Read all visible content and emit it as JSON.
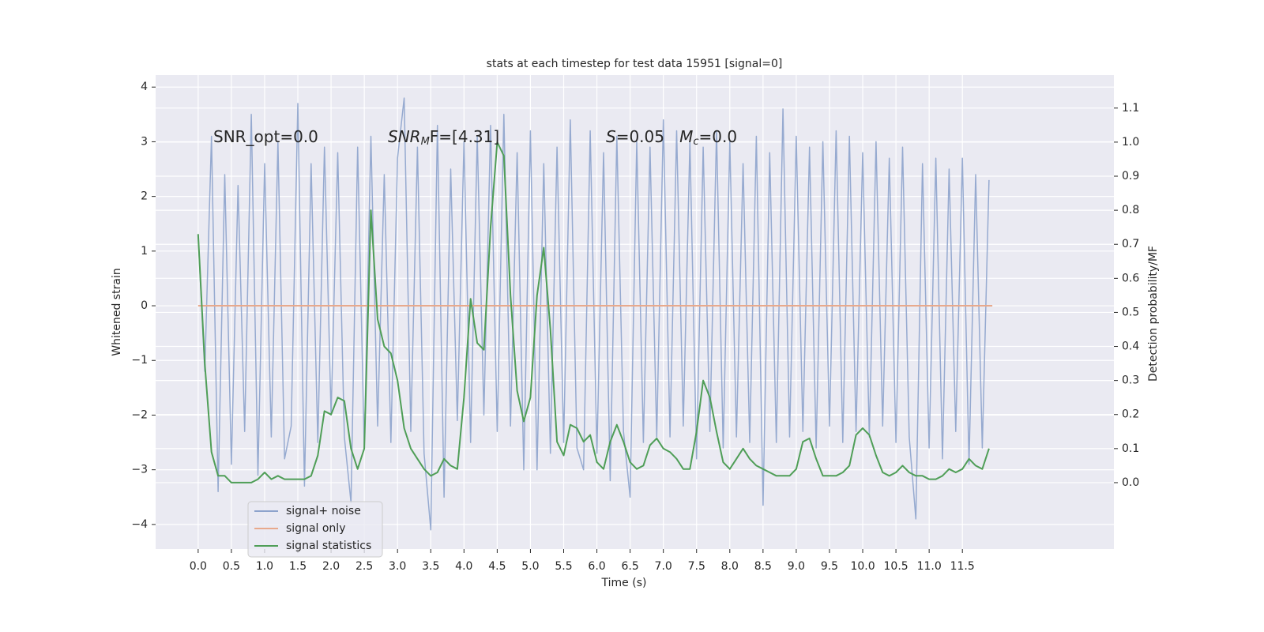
{
  "chart_data": {
    "type": "line",
    "title": "stats at each timestep for test data 15951 [signal=0]",
    "xlabel": "Time (s)",
    "ylabel": "Whitened strain",
    "y2label": "Detection probability/MF",
    "annotations": [
      [
        "SNR_opt=0.0"
      ],
      [
        "SNR",
        "M",
        "F=[4.31]"
      ],
      [
        "S",
        "=0.05   ",
        "M",
        "c",
        "=0.0"
      ]
    ],
    "grid": true,
    "legend": "lower left",
    "xlim": [
      -0.64,
      13.78
    ],
    "ylim": [
      -4.45,
      4.22
    ],
    "y2lim": [
      -0.195,
      1.197
    ],
    "xticks": [
      {
        "value": 0,
        "label": "0.0"
      },
      {
        "value": 0.5,
        "label": "0.5"
      },
      {
        "value": 1,
        "label": "1.0"
      },
      {
        "value": 1.5,
        "label": "1.5"
      },
      {
        "value": 2,
        "label": "2.0"
      },
      {
        "value": 2.5,
        "label": "2.5"
      },
      {
        "value": 3,
        "label": "3.0"
      },
      {
        "value": 3.5,
        "label": "3.5"
      },
      {
        "value": 4,
        "label": "4.0"
      },
      {
        "value": 4.5,
        "label": "4.5"
      },
      {
        "value": 5,
        "label": "5.0"
      },
      {
        "value": 5.5,
        "label": "5.5"
      },
      {
        "value": 6,
        "label": "6.0"
      },
      {
        "value": 6.5,
        "label": "6.5"
      },
      {
        "value": 7,
        "label": "7.0"
      },
      {
        "value": 7.5,
        "label": "7.5"
      },
      {
        "value": 8,
        "label": "8.0"
      },
      {
        "value": 8.5,
        "label": "8.5"
      },
      {
        "value": 9,
        "label": "9.0"
      },
      {
        "value": 9.5,
        "label": "9.5"
      },
      {
        "value": 10,
        "label": "10.0"
      },
      {
        "value": 10.5,
        "label": "10.5"
      },
      {
        "value": 11,
        "label": "11.0"
      },
      {
        "value": 11.5,
        "label": "11.5"
      }
    ],
    "yticks": [
      {
        "value": -4,
        "label": "−4"
      },
      {
        "value": -3,
        "label": "−3"
      },
      {
        "value": -2,
        "label": "−2"
      },
      {
        "value": -1,
        "label": "−1"
      },
      0,
      1,
      2,
      3,
      4
    ],
    "y2ticks": [
      {
        "value": 0,
        "label": "0.0"
      },
      {
        "value": 0.1,
        "label": "0.1"
      },
      {
        "value": 0.2,
        "label": "0.2"
      },
      {
        "value": 0.3,
        "label": "0.3"
      },
      {
        "value": 0.4,
        "label": "0.4"
      },
      {
        "value": 0.5,
        "label": "0.5"
      },
      {
        "value": 0.6,
        "label": "0.6"
      },
      {
        "value": 0.7,
        "label": "0.7"
      },
      {
        "value": 0.8,
        "label": "0.8"
      },
      {
        "value": 0.9,
        "label": "0.9"
      },
      {
        "value": 1,
        "label": "1.0"
      },
      {
        "value": 1.1,
        "label": "1.1"
      }
    ],
    "series": [
      {
        "name": "signal+ noise",
        "color": "#8da3cc",
        "x": [
          0,
          0.1,
          0.2,
          0.3,
          0.4,
          0.5,
          0.6,
          0.7,
          0.8,
          0.9,
          1,
          1.1,
          1.2,
          1.3,
          1.4,
          1.5,
          1.6,
          1.7,
          1.8,
          1.9,
          2,
          2.1,
          2.2,
          2.3,
          2.4,
          2.5,
          2.6,
          2.7,
          2.8,
          2.9,
          3,
          3.1,
          3.2,
          3.3,
          3.4,
          3.5,
          3.6,
          3.7,
          3.8,
          3.9,
          4,
          4.1,
          4.2,
          4.3,
          4.4,
          4.5,
          4.6,
          4.7,
          4.8,
          4.9,
          5,
          5.1,
          5.2,
          5.3,
          5.4,
          5.5,
          5.6,
          5.7,
          5.8,
          5.9,
          6,
          6.1,
          6.2,
          6.3,
          6.4,
          6.5,
          6.6,
          6.7,
          6.8,
          6.9,
          7,
          7.1,
          7.2,
          7.3,
          7.4,
          7.5,
          7.6,
          7.7,
          7.8,
          7.9,
          8,
          8.1,
          8.2,
          8.3,
          8.4,
          8.5,
          8.6,
          8.7,
          8.8,
          8.9,
          9,
          9.1,
          9.2,
          9.3,
          9.4,
          9.5,
          9.6,
          9.7,
          9.8,
          9.9,
          10,
          10.1,
          10.2,
          10.3,
          10.4,
          10.5,
          10.6,
          10.7,
          10.8,
          10.9,
          11,
          11.1,
          11.2,
          11.3,
          11.4,
          11.5,
          11.6,
          11.7,
          11.8,
          11.9
        ],
        "values": [
          1.3,
          -1.2,
          3.1,
          -3.4,
          2.4,
          -2.9,
          2.2,
          -2.3,
          3.5,
          -3.1,
          2.6,
          -2.4,
          3.0,
          -2.8,
          -2.2,
          3.7,
          -3.3,
          2.6,
          -2.5,
          2.9,
          -2.0,
          2.8,
          -2.4,
          -3.6,
          2.9,
          -2.6,
          3.1,
          -2.2,
          2.4,
          -2.5,
          2.7,
          3.8,
          -2.3,
          2.9,
          -2.7,
          -4.1,
          3.3,
          -3.5,
          2.5,
          -2.1,
          3.0,
          -2.5,
          3.1,
          -2.0,
          3.3,
          -2.3,
          3.5,
          -2.2,
          2.8,
          -3.0,
          3.2,
          -3.0,
          2.6,
          -2.7,
          2.9,
          -2.5,
          3.4,
          -2.6,
          -3.0,
          3.2,
          -2.7,
          2.8,
          -3.2,
          3.1,
          -2.3,
          -3.5,
          3.0,
          -2.5,
          2.9,
          -2.4,
          3.4,
          -2.4,
          3.2,
          -2.2,
          3.0,
          -2.8,
          2.9,
          -2.3,
          3.2,
          -2.6,
          3.0,
          -2.4,
          2.6,
          -2.5,
          3.1,
          -3.65,
          2.8,
          -2.5,
          3.6,
          -2.4,
          3.1,
          -2.3,
          2.9,
          -2.6,
          3.0,
          -2.2,
          3.2,
          -2.5,
          3.1,
          -2.3,
          2.8,
          -2.4,
          3.0,
          -2.2,
          2.7,
          -2.5,
          2.9,
          -2.4,
          -3.9,
          2.6,
          -2.6,
          2.7,
          -2.8,
          2.5,
          -2.3,
          2.7,
          -2.9,
          2.4,
          -2.6,
          2.3
        ]
      },
      {
        "name": "signal only",
        "color": "#e8a98c",
        "x": [
          0,
          11.95
        ],
        "values": [
          0,
          0
        ]
      },
      {
        "name": "signal statistics",
        "color": "#4f9e57",
        "axis": "y2",
        "x": [
          0,
          0.1,
          0.2,
          0.3,
          0.4,
          0.5,
          0.6,
          0.7,
          0.8,
          0.9,
          1,
          1.1,
          1.2,
          1.3,
          1.4,
          1.5,
          1.6,
          1.7,
          1.8,
          1.9,
          2,
          2.1,
          2.2,
          2.3,
          2.4,
          2.5,
          2.6,
          2.7,
          2.8,
          2.9,
          3,
          3.1,
          3.2,
          3.3,
          3.4,
          3.5,
          3.6,
          3.7,
          3.8,
          3.9,
          4,
          4.1,
          4.2,
          4.3,
          4.4,
          4.5,
          4.6,
          4.7,
          4.8,
          4.9,
          5,
          5.1,
          5.2,
          5.3,
          5.4,
          5.5,
          5.6,
          5.7,
          5.8,
          5.9,
          6,
          6.1,
          6.2,
          6.3,
          6.4,
          6.5,
          6.6,
          6.7,
          6.8,
          6.9,
          7,
          7.1,
          7.2,
          7.3,
          7.4,
          7.5,
          7.6,
          7.7,
          7.8,
          7.9,
          8,
          8.1,
          8.2,
          8.3,
          8.4,
          8.5,
          8.6,
          8.7,
          8.8,
          8.9,
          9,
          9.1,
          9.2,
          9.3,
          9.4,
          9.5,
          9.6,
          9.7,
          9.8,
          9.9,
          10,
          10.1,
          10.2,
          10.3,
          10.4,
          10.5,
          10.6,
          10.7,
          10.8,
          10.9,
          11,
          11.1,
          11.2,
          11.3,
          11.4,
          11.5,
          11.6,
          11.7,
          11.8,
          11.9
        ],
        "values": [
          0.73,
          0.35,
          0.09,
          0.02,
          0.02,
          0.0,
          0.0,
          0.0,
          0.0,
          0.01,
          0.03,
          0.01,
          0.02,
          0.01,
          0.01,
          0.01,
          0.01,
          0.02,
          0.08,
          0.21,
          0.2,
          0.25,
          0.24,
          0.1,
          0.04,
          0.1,
          0.8,
          0.48,
          0.4,
          0.38,
          0.3,
          0.16,
          0.1,
          0.07,
          0.04,
          0.02,
          0.03,
          0.07,
          0.05,
          0.04,
          0.25,
          0.54,
          0.41,
          0.39,
          0.75,
          1.0,
          0.96,
          0.55,
          0.27,
          0.18,
          0.25,
          0.55,
          0.69,
          0.45,
          0.12,
          0.08,
          0.17,
          0.16,
          0.12,
          0.14,
          0.06,
          0.04,
          0.12,
          0.17,
          0.12,
          0.06,
          0.04,
          0.05,
          0.11,
          0.13,
          0.1,
          0.09,
          0.07,
          0.04,
          0.04,
          0.15,
          0.3,
          0.25,
          0.15,
          0.06,
          0.04,
          0.07,
          0.1,
          0.07,
          0.05,
          0.04,
          0.03,
          0.02,
          0.02,
          0.02,
          0.04,
          0.12,
          0.13,
          0.07,
          0.02,
          0.02,
          0.02,
          0.03,
          0.05,
          0.14,
          0.16,
          0.14,
          0.08,
          0.03,
          0.02,
          0.03,
          0.05,
          0.03,
          0.02,
          0.02,
          0.01,
          0.01,
          0.02,
          0.04,
          0.03,
          0.04,
          0.07,
          0.05,
          0.04,
          0.1
        ]
      }
    ]
  }
}
